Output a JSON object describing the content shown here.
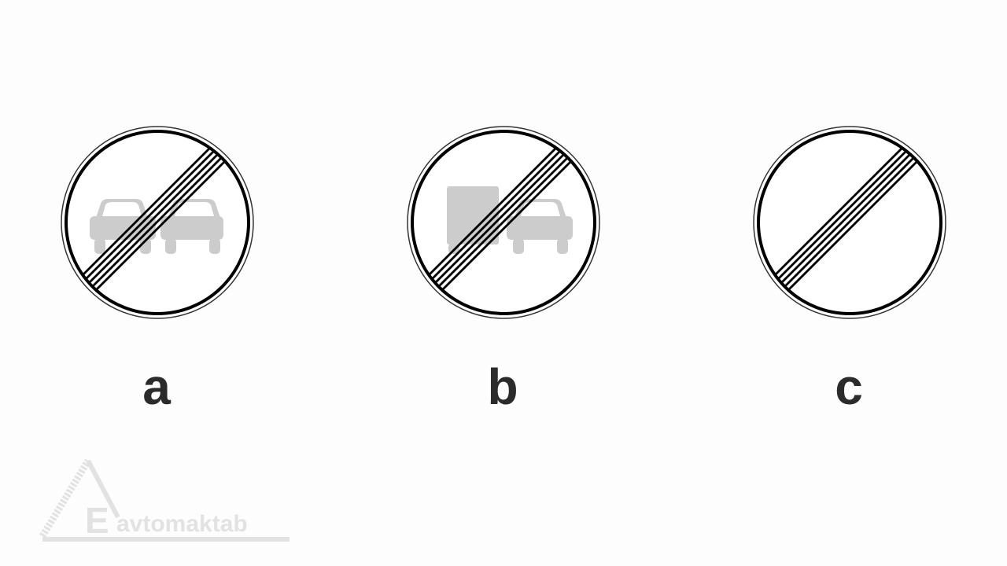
{
  "options": [
    {
      "letter": "a",
      "sign": "end-of-no-overtaking-sign"
    },
    {
      "letter": "b",
      "sign": "end-of-no-overtaking-by-trucks-sign"
    },
    {
      "letter": "c",
      "sign": "end-of-all-restrictions-sign"
    }
  ],
  "watermark": {
    "letter": "E",
    "text": "avtomaktab"
  },
  "colors": {
    "background": "#fdfdfd",
    "sign_outline": "#000000",
    "vehicle_gray": "#cccccc",
    "label_text": "#2b2b2b",
    "watermark": "#e2e2e2"
  }
}
